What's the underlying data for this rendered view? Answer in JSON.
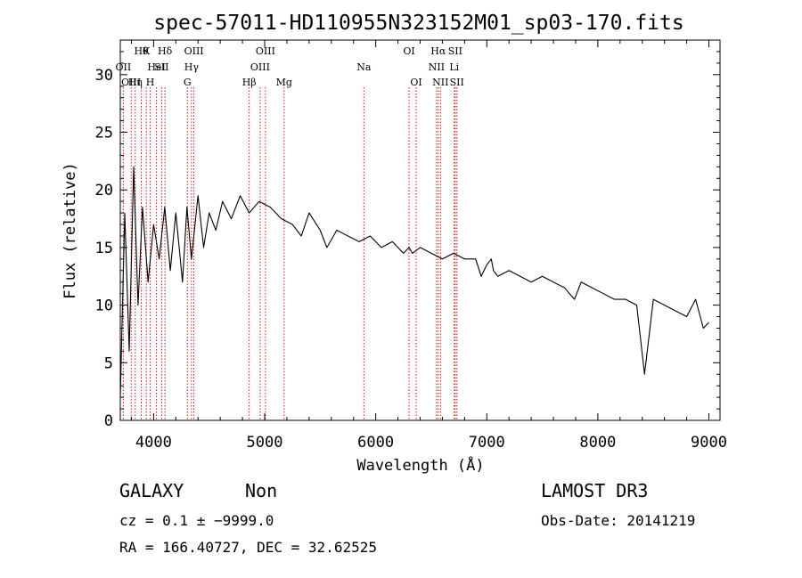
{
  "chart_data": {
    "type": "line",
    "title": "spec-57011-HD110955N323152M01_sp03-170.fits",
    "xlabel": "Wavelength (Å)",
    "ylabel": "Flux (relative)",
    "xlim": [
      3700,
      9100
    ],
    "ylim": [
      0,
      33
    ],
    "xticks": [
      {
        "value": 4000,
        "label": "4000"
      },
      {
        "value": 5000,
        "label": "5000"
      },
      {
        "value": 6000,
        "label": "6000"
      },
      {
        "value": 7000,
        "label": "7000"
      },
      {
        "value": 8000,
        "label": "8000"
      },
      {
        "value": 9000,
        "label": "9000"
      }
    ],
    "yticks": [
      {
        "value": 0,
        "label": "0"
      },
      {
        "value": 5,
        "label": "5"
      },
      {
        "value": 10,
        "label": "10"
      },
      {
        "value": 15,
        "label": "15"
      },
      {
        "value": 20,
        "label": "20"
      },
      {
        "value": 25,
        "label": "25"
      },
      {
        "value": 30,
        "label": "30"
      }
    ],
    "series": [
      {
        "name": "flux",
        "wavelength": [
          3700,
          3740,
          3780,
          3820,
          3860,
          3900,
          3950,
          4000,
          4050,
          4100,
          4150,
          4200,
          4260,
          4300,
          4340,
          4400,
          4450,
          4500,
          4560,
          4620,
          4700,
          4780,
          4860,
          4950,
          5050,
          5150,
          5250,
          5330,
          5400,
          5500,
          5560,
          5650,
          5750,
          5850,
          5950,
          6050,
          6150,
          6250,
          6300,
          6330,
          6400,
          6500,
          6600,
          6700,
          6800,
          6900,
          6950,
          7000,
          7040,
          7060,
          7100,
          7200,
          7300,
          7400,
          7500,
          7600,
          7700,
          7790,
          7850,
          7950,
          8050,
          8150,
          8250,
          8350,
          8420,
          8500,
          8600,
          8700,
          8800,
          8880,
          8950,
          9000
        ],
        "flux": [
          2.0,
          18.0,
          6.0,
          22.0,
          10.0,
          18.5,
          12.0,
          17.0,
          14.0,
          18.5,
          13.0,
          18.0,
          12.0,
          18.5,
          14.0,
          19.5,
          15.0,
          18.0,
          16.5,
          19.0,
          17.5,
          19.5,
          18.0,
          19.0,
          18.5,
          17.5,
          17.0,
          16.0,
          18.0,
          16.5,
          15.0,
          16.5,
          16.0,
          15.5,
          16.0,
          15.0,
          15.5,
          14.5,
          15.0,
          14.5,
          15.0,
          14.5,
          14.0,
          14.5,
          14.0,
          14.0,
          12.5,
          13.5,
          14.0,
          13.0,
          12.5,
          13.0,
          12.5,
          12.0,
          12.5,
          12.0,
          11.5,
          10.5,
          12.0,
          11.5,
          11.0,
          10.5,
          10.5,
          10.0,
          4.0,
          10.5,
          10.0,
          9.5,
          9.0,
          10.5,
          8.0,
          8.5
        ]
      }
    ],
    "lines": [
      {
        "wavelength": 3727,
        "label": "OII",
        "row": 1
      },
      {
        "wavelength": 3798,
        "label": "OIII",
        "row": 2
      },
      {
        "wavelength": 3835,
        "label": "Hη",
        "row": 2
      },
      {
        "wavelength": 3889,
        "label": "Hθ",
        "row": 0
      },
      {
        "wavelength": 3934,
        "label": "K",
        "row": 0
      },
      {
        "wavelength": 3969,
        "label": "H",
        "row": 2
      },
      {
        "wavelength": 4026,
        "label": "HeI",
        "row": 1
      },
      {
        "wavelength": 4072,
        "label": "SII",
        "row": 1
      },
      {
        "wavelength": 4102,
        "label": "Hδ",
        "row": 0
      },
      {
        "wavelength": 4304,
        "label": "G",
        "row": 2
      },
      {
        "wavelength": 4341,
        "label": "Hγ",
        "row": 1
      },
      {
        "wavelength": 4363,
        "label": "OIII",
        "row": 0
      },
      {
        "wavelength": 4861,
        "label": "Hβ",
        "row": 2
      },
      {
        "wavelength": 4959,
        "label": "OIII",
        "row": 1
      },
      {
        "wavelength": 5007,
        "label": "OIII",
        "row": 0
      },
      {
        "wavelength": 5175,
        "label": "Mg",
        "row": 2
      },
      {
        "wavelength": 5893,
        "label": "Na",
        "row": 1
      },
      {
        "wavelength": 6300,
        "label": "OI",
        "row": 0
      },
      {
        "wavelength": 6364,
        "label": "OI",
        "row": 2
      },
      {
        "wavelength": 6548,
        "label": "NII",
        "row": 1
      },
      {
        "wavelength": 6563,
        "label": "Hα",
        "row": 0
      },
      {
        "wavelength": 6583,
        "label": "NII",
        "row": 2
      },
      {
        "wavelength": 6707,
        "label": "Li",
        "row": 1
      },
      {
        "wavelength": 6716,
        "label": "SII",
        "row": 0
      },
      {
        "wavelength": 6731,
        "label": "SII",
        "row": 2
      }
    ]
  },
  "info": {
    "class": "GALAXY",
    "subclass": "Non",
    "survey": "LAMOST DR3",
    "cz": "cz = 0.1 ± −9999.0",
    "obs_date": "Obs-Date: 20141219",
    "coords": "RA = 166.40727, DEC =  32.62525"
  }
}
